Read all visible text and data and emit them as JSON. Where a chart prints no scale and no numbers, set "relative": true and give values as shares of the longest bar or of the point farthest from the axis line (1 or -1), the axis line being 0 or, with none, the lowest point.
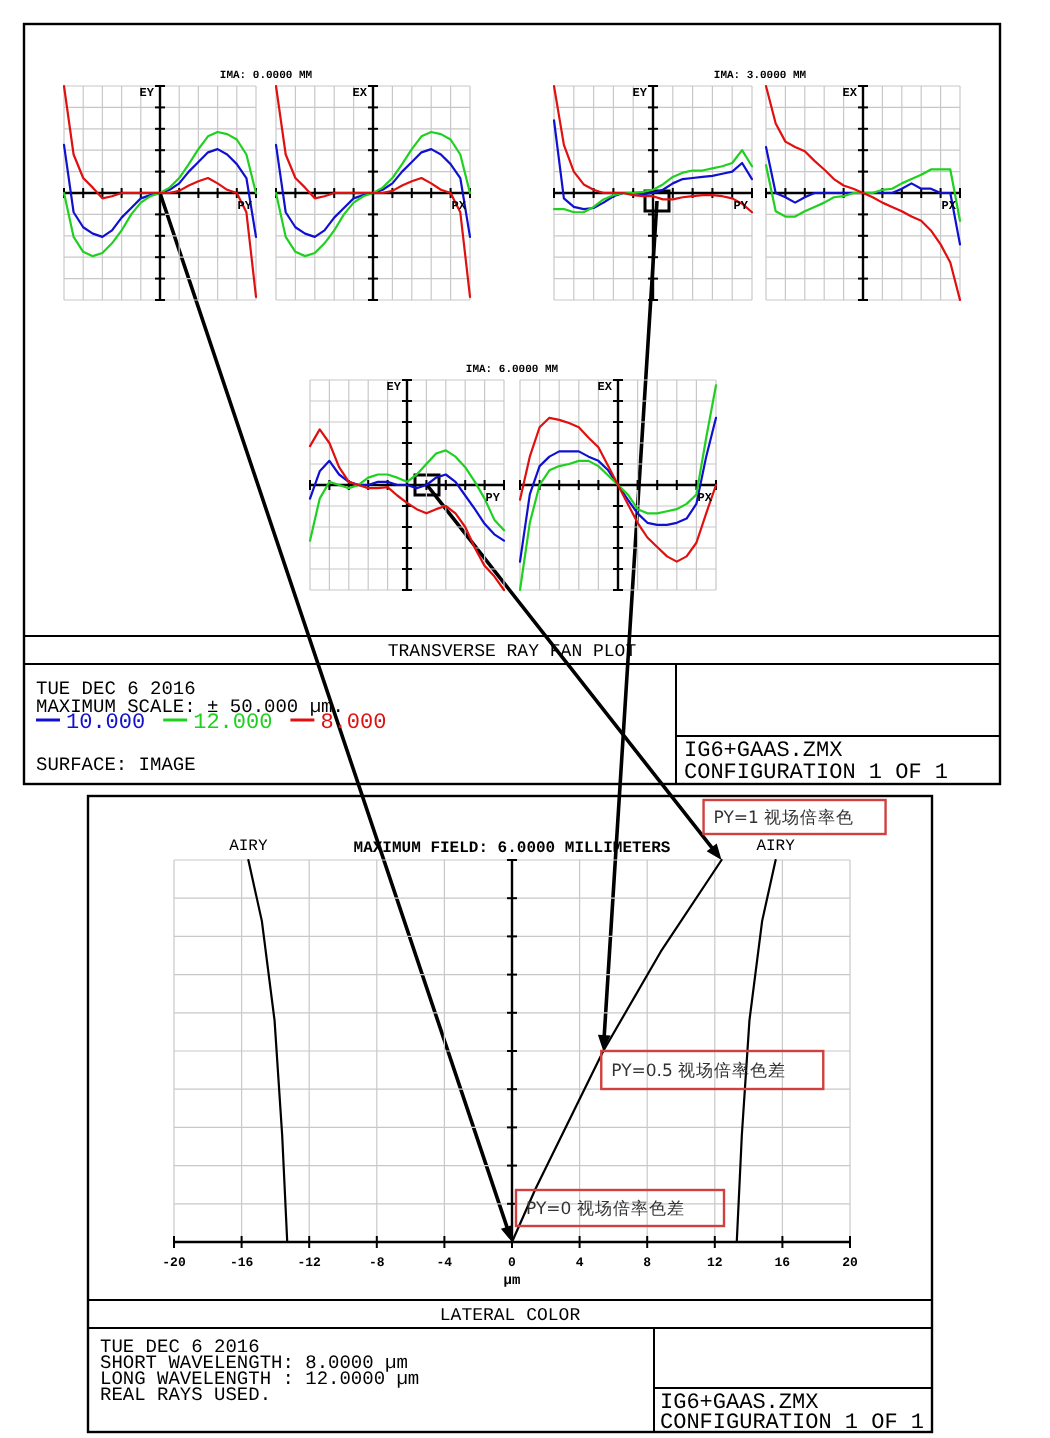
{
  "chart_data": [
    {
      "type": "line",
      "title": "IMA: 0.0000 MM",
      "xlabel": "PY",
      "ylabel": "EY",
      "relative": true,
      "grid": true,
      "tick_labels": false,
      "legend": "bottom",
      "categories": [
        null,
        null,
        null,
        null,
        null,
        null,
        null,
        null,
        null,
        null,
        null,
        null,
        null,
        null,
        null,
        null,
        null,
        null,
        null,
        null,
        null
      ],
      "series": [
        {
          "name": "10.000",
          "color": "#1010d0",
          "values": [
            0.45,
            -0.18,
            -0.32,
            -0.38,
            -0.41,
            -0.35,
            -0.23,
            -0.14,
            -0.05,
            -0.02,
            0,
            0.03,
            0.09,
            0.2,
            0.29,
            0.38,
            0.41,
            0.36,
            0.27,
            0.14,
            -0.41
          ]
        },
        {
          "name": "12.000",
          "color": "#20d020",
          "values": [
            0,
            -0.41,
            -0.55,
            -0.59,
            -0.56,
            -0.47,
            -0.35,
            -0.2,
            -0.09,
            -0.03,
            0,
            0.05,
            0.14,
            0.27,
            0.41,
            0.53,
            0.57,
            0.55,
            0.5,
            0.36,
            0
          ]
        },
        {
          "name": "8.000",
          "color": "#e01010",
          "values": [
            1,
            0.36,
            0.14,
            0.05,
            -0.05,
            -0.03,
            0,
            0,
            0,
            0,
            0,
            0,
            0.02,
            0.07,
            0.11,
            0.14,
            0.09,
            0.03,
            0,
            -0.18,
            -0.97
          ]
        }
      ]
    },
    {
      "type": "line",
      "xlabel": "PX",
      "ylabel": "EX",
      "relative": true,
      "grid": true,
      "tick_labels": false,
      "categories": [
        null,
        null,
        null,
        null,
        null,
        null,
        null,
        null,
        null,
        null,
        null,
        null,
        null,
        null,
        null,
        null,
        null,
        null,
        null,
        null,
        null
      ],
      "series": [
        {
          "color": "#1010d0",
          "values": [
            0.45,
            -0.18,
            -0.32,
            -0.38,
            -0.41,
            -0.35,
            -0.23,
            -0.14,
            -0.05,
            -0.02,
            0,
            0.03,
            0.09,
            0.2,
            0.29,
            0.38,
            0.41,
            0.36,
            0.27,
            0.14,
            -0.41
          ]
        },
        {
          "color": "#20d020",
          "values": [
            0,
            -0.41,
            -0.55,
            -0.59,
            -0.56,
            -0.47,
            -0.35,
            -0.2,
            -0.09,
            -0.03,
            0,
            0.05,
            0.14,
            0.27,
            0.41,
            0.53,
            0.57,
            0.55,
            0.5,
            0.36,
            0
          ]
        },
        {
          "color": "#e01010",
          "values": [
            1,
            0.36,
            0.14,
            0.05,
            -0.05,
            -0.03,
            0,
            0,
            0,
            0,
            0,
            0,
            0.02,
            0.07,
            0.11,
            0.14,
            0.09,
            0.03,
            0,
            -0.18,
            -0.97
          ]
        }
      ]
    },
    {
      "type": "line",
      "title": "IMA: 3.0000 MM",
      "xlabel": "PY",
      "ylabel": "EY",
      "relative": true,
      "grid": true,
      "tick_labels": false,
      "categories": [
        null,
        null,
        null,
        null,
        null,
        null,
        null,
        null,
        null,
        null,
        null,
        null,
        null,
        null,
        null,
        null,
        null,
        null,
        null,
        null,
        null
      ],
      "series": [
        {
          "color": "#1010d0",
          "values": [
            0.68,
            -0.05,
            -0.13,
            -0.15,
            -0.14,
            -0.09,
            -0.03,
            0,
            0,
            -0.01,
            0,
            0.03,
            0.09,
            0.13,
            0.14,
            0.15,
            0.16,
            0.18,
            0.2,
            0.28,
            0.13
          ]
        },
        {
          "color": "#20d020",
          "values": [
            -0.15,
            -0.15,
            -0.18,
            -0.18,
            -0.13,
            -0.06,
            -0.02,
            0,
            0,
            0.01,
            0.03,
            0.08,
            0.15,
            0.19,
            0.21,
            0.21,
            0.23,
            0.25,
            0.28,
            0.4,
            0.25
          ]
        },
        {
          "color": "#e01010",
          "values": [
            1,
            0.45,
            0.2,
            0.08,
            0.03,
            0,
            0,
            0,
            -0.02,
            -0.03,
            -0.03,
            -0.06,
            -0.06,
            -0.04,
            -0.03,
            -0.02,
            -0.02,
            -0.03,
            -0.05,
            -0.1,
            -0.18
          ]
        }
      ]
    },
    {
      "type": "line",
      "xlabel": "PX",
      "ylabel": "EX",
      "relative": true,
      "grid": true,
      "tick_labels": false,
      "categories": [
        null,
        null,
        null,
        null,
        null,
        null,
        null,
        null,
        null,
        null,
        null,
        null,
        null,
        null,
        null,
        null,
        null,
        null,
        null,
        null,
        null
      ],
      "series": [
        {
          "color": "#1010d0",
          "values": [
            0.43,
            0,
            -0.04,
            -0.09,
            -0.04,
            0,
            0,
            0,
            0,
            0,
            0,
            0,
            0,
            0,
            0.04,
            0.09,
            0.04,
            0.04,
            0,
            0,
            -0.48
          ]
        },
        {
          "color": "#20d020",
          "values": [
            0.26,
            -0.17,
            -0.22,
            -0.22,
            -0.17,
            -0.13,
            -0.09,
            -0.04,
            -0.03,
            0,
            0,
            0,
            0.03,
            0.04,
            0.09,
            0.13,
            0.17,
            0.22,
            0.22,
            0.22,
            -0.26
          ]
        },
        {
          "color": "#e01010",
          "values": [
            1,
            0.65,
            0.48,
            0.43,
            0.39,
            0.3,
            0.22,
            0.13,
            0.07,
            0.04,
            0,
            -0.04,
            -0.09,
            -0.13,
            -0.17,
            -0.22,
            -0.26,
            -0.35,
            -0.48,
            -0.65,
            -1
          ]
        }
      ]
    },
    {
      "type": "line",
      "title": "IMA: 6.0000 MM",
      "xlabel": "PY",
      "ylabel": "EY",
      "relative": true,
      "grid": true,
      "tick_labels": false,
      "categories": [
        null,
        null,
        null,
        null,
        null,
        null,
        null,
        null,
        null,
        null,
        null,
        null,
        null,
        null,
        null,
        null,
        null,
        null,
        null,
        null,
        null
      ],
      "series": [
        {
          "color": "#1010d0",
          "values": [
            -0.13,
            0.13,
            0.23,
            0.1,
            0.03,
            0,
            0,
            0.03,
            0.03,
            0,
            0,
            -0.03,
            0,
            0.07,
            0.1,
            0.03,
            -0.1,
            -0.23,
            -0.37,
            -0.47,
            -0.53
          ]
        },
        {
          "color": "#20d020",
          "values": [
            -0.53,
            -0.13,
            0.03,
            0,
            -0.03,
            0,
            0.07,
            0.1,
            0.1,
            0.07,
            0.03,
            0.1,
            0.2,
            0.3,
            0.33,
            0.27,
            0.17,
            0.03,
            -0.13,
            -0.33,
            -0.43
          ]
        },
        {
          "color": "#e01010",
          "values": [
            0.37,
            0.53,
            0.4,
            0.17,
            0.03,
            0,
            -0.03,
            -0.03,
            -0.02,
            -0.1,
            -0.17,
            -0.23,
            -0.27,
            -0.23,
            -0.2,
            -0.27,
            -0.4,
            -0.6,
            -0.77,
            -0.87,
            -1
          ]
        }
      ]
    },
    {
      "type": "line",
      "xlabel": "PX",
      "ylabel": "EX",
      "relative": true,
      "grid": true,
      "tick_labels": false,
      "categories": [
        null,
        null,
        null,
        null,
        null,
        null,
        null,
        null,
        null,
        null,
        null,
        null,
        null,
        null,
        null,
        null,
        null,
        null,
        null,
        null,
        null
      ],
      "series": [
        {
          "color": "#1010d0",
          "values": [
            -0.73,
            -0.09,
            0.18,
            0.27,
            0.32,
            0.32,
            0.32,
            0.27,
            0.23,
            0.14,
            0,
            -0.14,
            -0.27,
            -0.36,
            -0.38,
            -0.38,
            -0.36,
            -0.32,
            -0.18,
            0.27,
            0.64
          ]
        },
        {
          "color": "#20d020",
          "values": [
            -1,
            -0.36,
            0,
            0.14,
            0.18,
            0.2,
            0.23,
            0.23,
            0.18,
            0.09,
            0,
            -0.09,
            -0.23,
            -0.27,
            -0.27,
            -0.25,
            -0.23,
            -0.18,
            -0.09,
            0.45,
            0.95
          ]
        },
        {
          "color": "#e01010",
          "values": [
            -0.14,
            0.27,
            0.55,
            0.64,
            0.62,
            0.59,
            0.55,
            0.45,
            0.36,
            0.18,
            0,
            -0.18,
            -0.36,
            -0.5,
            -0.59,
            -0.68,
            -0.73,
            -0.68,
            -0.55,
            -0.27,
            0
          ]
        }
      ]
    },
    {
      "type": "other",
      "title": "TRANSVERSE RAY FAN PLOT",
      "annotations": [
        "TUE DEC 6 2016",
        "MAXIMUM SCALE: ± 50.000 µm.",
        "SURFACE: IMAGE",
        "IG6+GAAS.ZMX",
        "CONFIGURATION 1 OF 1"
      ]
    },
    {
      "type": "line",
      "title": "MAXIMUM FIELD: 6.0000 MILLIMETERS",
      "xlabel": "µm",
      "relative": true,
      "grid": true,
      "tick_labels": "x",
      "xlim": [
        -20,
        20
      ],
      "xticks": [
        -20,
        -16,
        -12,
        -8,
        -4,
        0,
        4,
        8,
        12,
        16,
        20
      ],
      "series": [
        {
          "name": "AIRY",
          "color": "#000000",
          "x": [
            -13.3,
            -13.6,
            -14.05,
            -14.8,
            -15.6
          ],
          "values": [
            0,
            0.28,
            0.58,
            0.84,
            1
          ]
        },
        {
          "name": "AIRY",
          "color": "#000000",
          "x": [
            13.3,
            13.6,
            14.05,
            14.8,
            15.6
          ],
          "values": [
            0,
            0.28,
            0.58,
            0.84,
            1
          ]
        },
        {
          "color": "#000000",
          "x": [
            0,
            1.4,
            5.4,
            8.8,
            12.4
          ],
          "values": [
            0,
            0.14,
            0.5,
            0.76,
            1
          ]
        }
      ],
      "annotations": [
        {
          "text": "PY=1 视场倍率色",
          "x": 12.4,
          "y": 1
        },
        {
          "text": "PY=0.5 视场倍率色差",
          "x": 5.4,
          "y": 0.5
        },
        {
          "text": "PY=0 视场倍率色差",
          "x": 0,
          "y": 0
        }
      ]
    },
    {
      "type": "other",
      "title": "LATERAL COLOR",
      "annotations": [
        "TUE DEC 6 2016",
        "SHORT WAVELENGTH: 8.0000 µm",
        "LONG WAVELENGTH : 12.0000 µm",
        "REAL RAYS USED.",
        "IG6+GAAS.ZMX",
        "CONFIGURATION 1 OF 1"
      ]
    }
  ]
}
